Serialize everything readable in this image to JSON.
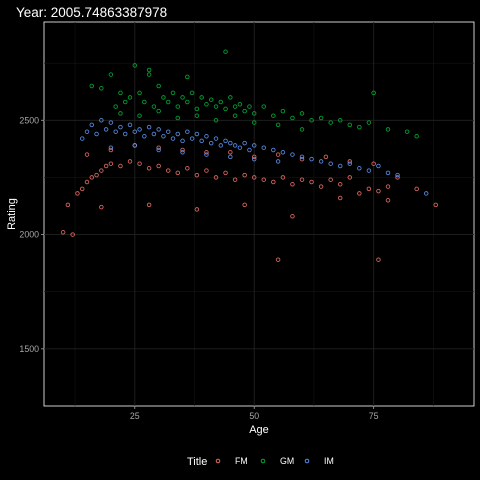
{
  "chart_data": {
    "type": "scatter",
    "title": "Year: 2005.74863387978",
    "xlabel": "Age",
    "ylabel": "Rating",
    "xlim": [
      6,
      96
    ],
    "ylim": [
      1250,
      2930
    ],
    "x_ticks": [
      25,
      50,
      75
    ],
    "y_ticks": [
      1500,
      2000,
      2500
    ],
    "x_tick_labels": [
      "25",
      "50",
      "75"
    ],
    "y_tick_labels": [
      "1500",
      "2000",
      "2500"
    ],
    "grid": true,
    "legend": {
      "title": "Title",
      "position": "bottom"
    },
    "series": [
      {
        "name": "FM",
        "color": "#F8766D",
        "x": [
          10,
          11,
          12,
          13,
          14,
          15,
          16,
          17,
          18,
          19,
          20,
          22,
          24,
          26,
          28,
          30,
          32,
          34,
          36,
          38,
          40,
          42,
          44,
          46,
          48,
          50,
          52,
          54,
          56,
          58,
          60,
          62,
          64,
          66,
          68,
          70,
          72,
          74,
          76,
          78,
          80,
          84,
          88,
          15,
          20,
          25,
          30,
          35,
          40,
          45,
          50,
          55,
          60,
          65,
          70,
          75,
          18,
          28,
          38,
          48,
          58,
          68,
          78,
          55,
          76
        ],
        "y": [
          2010,
          2130,
          2000,
          2180,
          2200,
          2230,
          2250,
          2260,
          2280,
          2300,
          2310,
          2300,
          2320,
          2310,
          2290,
          2300,
          2280,
          2270,
          2290,
          2260,
          2280,
          2250,
          2270,
          2240,
          2260,
          2250,
          2240,
          2230,
          2250,
          2220,
          2240,
          2230,
          2210,
          2240,
          2220,
          2250,
          2180,
          2200,
          2190,
          2210,
          2250,
          2200,
          2130,
          2350,
          2370,
          2390,
          2380,
          2370,
          2360,
          2360,
          2340,
          2350,
          2330,
          2340,
          2320,
          2310,
          2120,
          2130,
          2110,
          2130,
          2080,
          2160,
          2150,
          1890,
          1890
        ]
      },
      {
        "name": "GM",
        "color": "#00BA38",
        "x": [
          16,
          18,
          20,
          21,
          22,
          23,
          24,
          25,
          26,
          27,
          28,
          29,
          30,
          31,
          32,
          33,
          34,
          35,
          36,
          37,
          38,
          39,
          40,
          41,
          42,
          43,
          44,
          45,
          46,
          47,
          48,
          49,
          50,
          52,
          54,
          56,
          58,
          60,
          62,
          64,
          66,
          68,
          70,
          72,
          74,
          78,
          82,
          84,
          22,
          26,
          30,
          34,
          38,
          42,
          46,
          50,
          55,
          60,
          75,
          28,
          36,
          44
        ],
        "y": [
          2650,
          2640,
          2700,
          2560,
          2620,
          2580,
          2600,
          2740,
          2620,
          2580,
          2700,
          2560,
          2650,
          2600,
          2580,
          2620,
          2560,
          2600,
          2580,
          2620,
          2550,
          2600,
          2570,
          2590,
          2560,
          2580,
          2550,
          2600,
          2560,
          2570,
          2540,
          2560,
          2530,
          2560,
          2520,
          2540,
          2510,
          2530,
          2500,
          2510,
          2490,
          2500,
          2480,
          2470,
          2490,
          2460,
          2450,
          2430,
          2530,
          2520,
          2540,
          2510,
          2520,
          2500,
          2520,
          2490,
          2480,
          2460,
          2620,
          2720,
          2690,
          2800
        ]
      },
      {
        "name": "IM",
        "color": "#619CFF",
        "x": [
          14,
          15,
          16,
          17,
          18,
          19,
          20,
          21,
          22,
          23,
          24,
          25,
          26,
          27,
          28,
          29,
          30,
          31,
          32,
          33,
          34,
          35,
          36,
          37,
          38,
          39,
          40,
          41,
          42,
          43,
          44,
          45,
          46,
          47,
          48,
          49,
          50,
          52,
          54,
          56,
          58,
          60,
          62,
          64,
          66,
          68,
          70,
          72,
          74,
          76,
          78,
          80,
          86,
          20,
          25,
          30,
          35,
          40,
          45,
          50,
          55
        ],
        "y": [
          2420,
          2450,
          2480,
          2440,
          2500,
          2460,
          2490,
          2450,
          2470,
          2440,
          2480,
          2450,
          2460,
          2430,
          2470,
          2440,
          2460,
          2430,
          2450,
          2420,
          2440,
          2410,
          2450,
          2420,
          2440,
          2410,
          2430,
          2400,
          2420,
          2390,
          2410,
          2400,
          2390,
          2380,
          2400,
          2370,
          2390,
          2380,
          2370,
          2360,
          2350,
          2340,
          2330,
          2320,
          2310,
          2300,
          2310,
          2290,
          2280,
          2300,
          2270,
          2260,
          2180,
          2380,
          2390,
          2370,
          2360,
          2350,
          2340,
          2330,
          2320
        ]
      }
    ]
  }
}
